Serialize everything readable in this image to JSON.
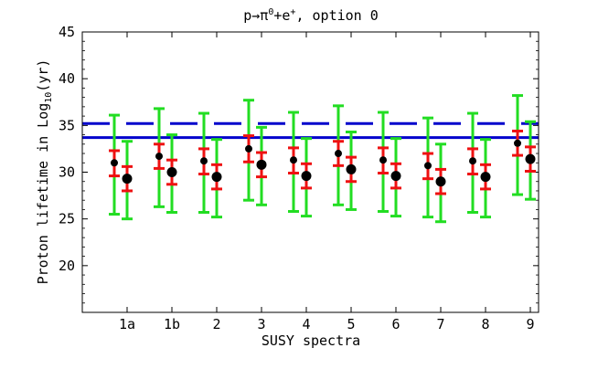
{
  "chart_data": {
    "type": "scatter",
    "title": "p→π⁰+e⁺, option 0",
    "title_parts": {
      "base": "p→π",
      "sup1": "0",
      "mid": "+e",
      "sup2": "+",
      "tail": ", option 0"
    },
    "xlabel": "SUSY spectra",
    "ylabel": "Proton lifetime in Log₁₀(yr)",
    "ylabel_parts": {
      "pre": "Proton lifetime in Log",
      "sub": "10",
      "post": "(yr)"
    },
    "categories": [
      "1a",
      "1b",
      "2",
      "3",
      "4",
      "5",
      "6",
      "7",
      "8",
      "9"
    ],
    "ylim": [
      15,
      45
    ],
    "yticks": [
      20,
      25,
      30,
      35,
      40,
      45
    ],
    "grid": false,
    "reference_lines": [
      {
        "style": "dashed",
        "color": "#0000cc",
        "y": 35.2
      },
      {
        "style": "solid",
        "color": "#0000cc",
        "y": 33.7
      }
    ],
    "series": [
      {
        "marker": "small-dot",
        "offset": "left",
        "values": [
          31.0,
          31.7,
          31.2,
          32.5,
          31.3,
          32.0,
          31.3,
          30.7,
          31.2,
          33.1
        ],
        "red_err_low": [
          29.6,
          30.4,
          29.8,
          31.1,
          29.9,
          30.7,
          29.9,
          29.3,
          29.8,
          31.8
        ],
        "red_err_high": [
          32.3,
          33.0,
          32.5,
          33.9,
          32.6,
          33.3,
          32.6,
          32.0,
          32.5,
          34.4
        ],
        "green_err_low": [
          25.5,
          26.3,
          25.7,
          27.0,
          25.8,
          26.5,
          25.8,
          25.2,
          25.7,
          27.6
        ],
        "green_err_high": [
          36.1,
          36.8,
          36.3,
          37.7,
          36.4,
          37.1,
          36.4,
          35.8,
          36.3,
          38.2
        ]
      },
      {
        "marker": "large-dot",
        "offset": "right",
        "values": [
          29.3,
          30.0,
          29.5,
          30.8,
          29.6,
          30.3,
          29.6,
          29.0,
          29.5,
          31.4
        ],
        "red_err_low": [
          28.0,
          28.7,
          28.2,
          29.5,
          28.3,
          29.0,
          28.3,
          27.7,
          28.2,
          30.1
        ],
        "red_err_high": [
          30.6,
          31.3,
          30.8,
          32.1,
          30.9,
          31.6,
          30.9,
          30.3,
          30.8,
          32.7
        ],
        "green_err_low": [
          25.0,
          25.7,
          25.2,
          26.5,
          25.3,
          26.0,
          25.3,
          24.7,
          25.2,
          27.1
        ],
        "green_err_high": [
          33.3,
          34.0,
          33.5,
          34.8,
          33.6,
          34.3,
          33.6,
          33.0,
          33.5,
          35.4
        ]
      }
    ],
    "colors": {
      "outer_error": "#22dd22",
      "inner_error": "#ee1111",
      "marker": "#000000",
      "reference": "#0000cc",
      "axis": "#000000"
    }
  }
}
